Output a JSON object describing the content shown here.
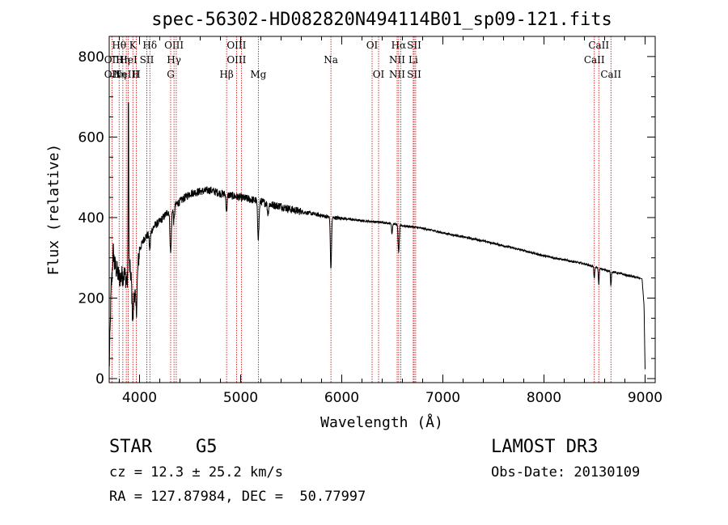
{
  "chart_data": {
    "type": "line",
    "title": "spec-56302-HD082820N494114B01_sp09-121.fits",
    "xlabel": "Wavelength (Å)",
    "ylabel": "Flux (relative)",
    "xlim": [
      3700,
      9100
    ],
    "ylim": [
      -10,
      850
    ],
    "xticks": [
      4000,
      5000,
      6000,
      7000,
      8000,
      9000
    ],
    "yticks": [
      0,
      200,
      400,
      600,
      800
    ],
    "continuum": {
      "x": [
        3700,
        3720,
        3760,
        3800,
        3850,
        3880,
        3900,
        3930,
        3960,
        4000,
        4050,
        4100,
        4150,
        4200,
        4300,
        4400,
        4500,
        4600,
        4700,
        4800,
        4900,
        5000,
        5100,
        5200,
        5300,
        5400,
        5500,
        5600,
        5700,
        5800,
        5900,
        6000,
        6100,
        6200,
        6300,
        6400,
        6500,
        6600,
        6700,
        6800,
        6900,
        7000,
        7200,
        7400,
        7600,
        7800,
        8000,
        8200,
        8400,
        8600,
        8800,
        8970,
        8990,
        9000
      ],
      "y": [
        20,
        230,
        280,
        250,
        260,
        240,
        280,
        230,
        220,
        320,
        350,
        360,
        380,
        390,
        420,
        440,
        460,
        465,
        468,
        460,
        455,
        450,
        445,
        440,
        432,
        428,
        420,
        415,
        410,
        405,
        400,
        398,
        395,
        392,
        390,
        388,
        385,
        380,
        377,
        373,
        368,
        362,
        352,
        342,
        330,
        318,
        305,
        295,
        285,
        270,
        258,
        248,
        180,
        20
      ]
    },
    "absorption_features": [
      {
        "center": 3934,
        "depth": 80,
        "width": 10
      },
      {
        "center": 3969,
        "depth": 70,
        "width": 10
      },
      {
        "center": 4102,
        "depth": 40,
        "width": 8
      },
      {
        "center": 4308,
        "depth": 110,
        "width": 10
      },
      {
        "center": 4340,
        "depth": 40,
        "width": 8
      },
      {
        "center": 4861,
        "depth": 40,
        "width": 8
      },
      {
        "center": 5175,
        "depth": 90,
        "width": 10
      },
      {
        "center": 5270,
        "depth": 25,
        "width": 8
      },
      {
        "center": 5893,
        "depth": 130,
        "width": 8
      },
      {
        "center": 6563,
        "depth": 70,
        "width": 8
      },
      {
        "center": 6497,
        "depth": 25,
        "width": 6
      },
      {
        "center": 8498,
        "depth": 30,
        "width": 6
      },
      {
        "center": 8542,
        "depth": 40,
        "width": 6
      },
      {
        "center": 8662,
        "depth": 35,
        "width": 6
      }
    ],
    "emission_features": [
      {
        "center": 3890,
        "height": 470,
        "width": 4
      },
      {
        "center": 3740,
        "height": 60,
        "width": 10
      }
    ],
    "line_markers": [
      {
        "wavelength": 3727,
        "labels": [
          "",
          "OII",
          "OII"
        ]
      },
      {
        "wavelength": 3798,
        "labels": [
          "Hθ",
          "",
          "Hη"
        ]
      },
      {
        "wavelength": 3835,
        "labels": [
          "",
          "Hη",
          ""
        ]
      },
      {
        "wavelength": 3869,
        "labels": [
          "",
          "",
          "NeIII"
        ]
      },
      {
        "wavelength": 3889,
        "labels": [
          "",
          "HeI",
          ""
        ]
      },
      {
        "wavelength": 3934,
        "labels": [
          "K",
          "",
          ""
        ]
      },
      {
        "wavelength": 3969,
        "labels": [
          "",
          "",
          "H"
        ]
      },
      {
        "wavelength": 4072,
        "labels": [
          "",
          "SII",
          ""
        ]
      },
      {
        "wavelength": 4102,
        "labels": [
          "Hδ",
          "",
          ""
        ]
      },
      {
        "wavelength": 4308,
        "labels": [
          "",
          "",
          "G"
        ]
      },
      {
        "wavelength": 4341,
        "labels": [
          "OIII",
          "Hγ",
          ""
        ]
      },
      {
        "wavelength": 4363,
        "labels": [
          "",
          "",
          ""
        ]
      },
      {
        "wavelength": 4861,
        "labels": [
          "",
          "",
          "Hβ"
        ]
      },
      {
        "wavelength": 4959,
        "labels": [
          "OIII",
          "OIII",
          ""
        ]
      },
      {
        "wavelength": 5007,
        "labels": [
          "",
          "",
          ""
        ]
      },
      {
        "wavelength": 5175,
        "labels": [
          "",
          "",
          "Mg"
        ]
      },
      {
        "wavelength": 5893,
        "labels": [
          "",
          "Na",
          ""
        ]
      },
      {
        "wavelength": 6300,
        "labels": [
          "OI",
          "",
          ""
        ]
      },
      {
        "wavelength": 6364,
        "labels": [
          "",
          "",
          "OI"
        ]
      },
      {
        "wavelength": 6548,
        "labels": [
          "",
          "NII",
          "NII"
        ]
      },
      {
        "wavelength": 6563,
        "labels": [
          "Hα",
          "",
          ""
        ]
      },
      {
        "wavelength": 6583,
        "labels": [
          "",
          "",
          ""
        ]
      },
      {
        "wavelength": 6707,
        "labels": [
          "",
          "Li",
          ""
        ]
      },
      {
        "wavelength": 6716,
        "labels": [
          "SII",
          "",
          "SII"
        ]
      },
      {
        "wavelength": 6731,
        "labels": [
          "",
          "",
          ""
        ]
      },
      {
        "wavelength": 8498,
        "labels": [
          "",
          "CaII",
          ""
        ]
      },
      {
        "wavelength": 8542,
        "labels": [
          "CaII",
          "",
          ""
        ]
      },
      {
        "wavelength": 8662,
        "labels": [
          "",
          "",
          "CaII"
        ]
      }
    ],
    "marker_color": "#cc0000"
  },
  "info": {
    "class": "STAR",
    "subclass": "G5",
    "survey": "LAMOST DR3",
    "cz": "cz = 12.3 ± 25.2 km/s",
    "obs_date": "Obs-Date: 20130109",
    "radec": "RA = 127.87984, DEC =  50.77997"
  }
}
